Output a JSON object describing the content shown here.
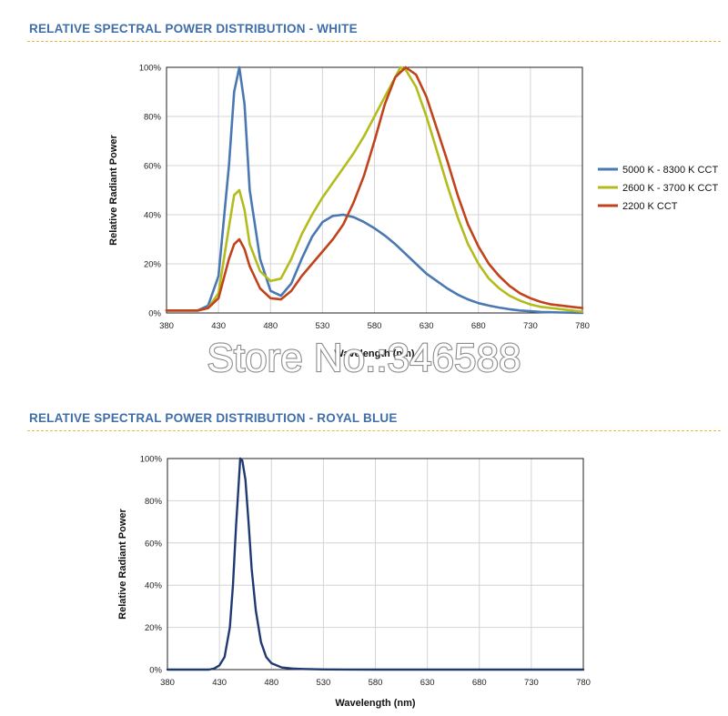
{
  "sections": [
    {
      "title": "RELATIVE SPECTRAL POWER DISTRIBUTION - WHITE"
    },
    {
      "title": "RELATIVE SPECTRAL POWER DISTRIBUTION - ROYAL BLUE"
    }
  ],
  "watermark": "Store No.:346588",
  "colors": {
    "title": "#3f6ea8",
    "divider": "#e9b842"
  },
  "chart_data": [
    {
      "type": "line",
      "title": "",
      "xlabel": "Wavelength (nm)",
      "ylabel": "Relative Radiant Power",
      "xlim": [
        380,
        780
      ],
      "ylim": [
        0,
        100
      ],
      "x_ticks": [
        "380",
        "430",
        "480",
        "530",
        "580",
        "630",
        "680",
        "730",
        "780"
      ],
      "y_ticks": [
        "0%",
        "20%",
        "40%",
        "60%",
        "80%",
        "100%"
      ],
      "grid": true,
      "legend": "right",
      "series": [
        {
          "name": "5000 K - 8300 K CCT",
          "color": "#4a78b3",
          "x": [
            380,
            410,
            420,
            430,
            440,
            445,
            450,
            455,
            460,
            470,
            480,
            490,
            500,
            510,
            520,
            530,
            540,
            550,
            560,
            570,
            580,
            590,
            600,
            610,
            620,
            630,
            640,
            650,
            660,
            670,
            680,
            690,
            700,
            710,
            720,
            730,
            740,
            750,
            760,
            770,
            780
          ],
          "y": [
            1,
            1,
            3,
            15,
            60,
            90,
            100,
            85,
            50,
            22,
            9,
            7,
            12,
            22,
            31,
            37,
            39.5,
            40,
            39,
            37,
            34.5,
            31.5,
            28,
            24,
            20,
            16,
            13,
            10,
            7.5,
            5.5,
            4,
            3,
            2.2,
            1.5,
            1,
            0.7,
            0.4,
            0.3,
            0.2,
            0.1,
            0
          ]
        },
        {
          "name": "2600 K - 3700 K CCT",
          "color": "#b2bd1c",
          "x": [
            380,
            410,
            420,
            430,
            440,
            445,
            450,
            455,
            460,
            470,
            480,
            490,
            500,
            510,
            520,
            530,
            540,
            550,
            560,
            570,
            580,
            590,
            600,
            605,
            610,
            620,
            630,
            640,
            650,
            660,
            670,
            680,
            690,
            700,
            710,
            720,
            730,
            740,
            750,
            760,
            770,
            780
          ],
          "y": [
            1,
            1,
            2,
            8,
            35,
            48,
            50,
            42,
            28,
            17,
            13,
            14,
            22,
            32,
            40,
            47,
            53,
            59,
            65,
            72,
            80,
            88,
            96,
            100,
            99,
            92,
            80,
            66,
            52,
            39,
            28,
            20,
            14,
            10,
            7,
            5,
            3.5,
            2.5,
            2,
            1.5,
            1,
            0.5
          ]
        },
        {
          "name": "2200 K CCT",
          "color": "#c0431c",
          "x": [
            380,
            410,
            420,
            430,
            440,
            445,
            450,
            455,
            460,
            470,
            480,
            490,
            500,
            510,
            520,
            530,
            540,
            550,
            560,
            570,
            580,
            590,
            600,
            610,
            620,
            630,
            640,
            650,
            660,
            670,
            680,
            690,
            700,
            710,
            720,
            730,
            740,
            750,
            760,
            770,
            780
          ],
          "y": [
            1,
            1,
            2,
            6,
            22,
            28,
            30,
            26,
            19,
            10,
            6,
            5.5,
            9,
            15,
            20,
            25,
            30,
            36,
            45,
            56,
            70,
            85,
            96,
            100,
            97,
            88,
            75,
            62,
            48,
            36,
            27,
            20,
            15,
            11,
            8,
            6,
            4.5,
            3.5,
            3,
            2.5,
            2
          ]
        }
      ]
    },
    {
      "type": "line",
      "title": "",
      "xlabel": "Wavelength (nm)",
      "ylabel": "Relative Radiant Power",
      "xlim": [
        380,
        780
      ],
      "ylim": [
        0,
        100
      ],
      "x_ticks": [
        "380",
        "430",
        "480",
        "530",
        "580",
        "630",
        "680",
        "730",
        "780"
      ],
      "y_ticks": [
        "0%",
        "20%",
        "40%",
        "60%",
        "80%",
        "100%"
      ],
      "grid": true,
      "series": [
        {
          "color": "#1f3a73",
          "x": [
            380,
            420,
            425,
            430,
            435,
            440,
            443,
            446,
            450,
            452,
            455,
            458,
            461,
            465,
            470,
            475,
            480,
            490,
            500,
            510,
            530,
            580,
            780
          ],
          "y": [
            0,
            0,
            0.5,
            2,
            6,
            20,
            40,
            68,
            100,
            99,
            90,
            70,
            48,
            28,
            13,
            6,
            3,
            1,
            0.5,
            0.3,
            0.1,
            0,
            0
          ]
        }
      ]
    }
  ]
}
